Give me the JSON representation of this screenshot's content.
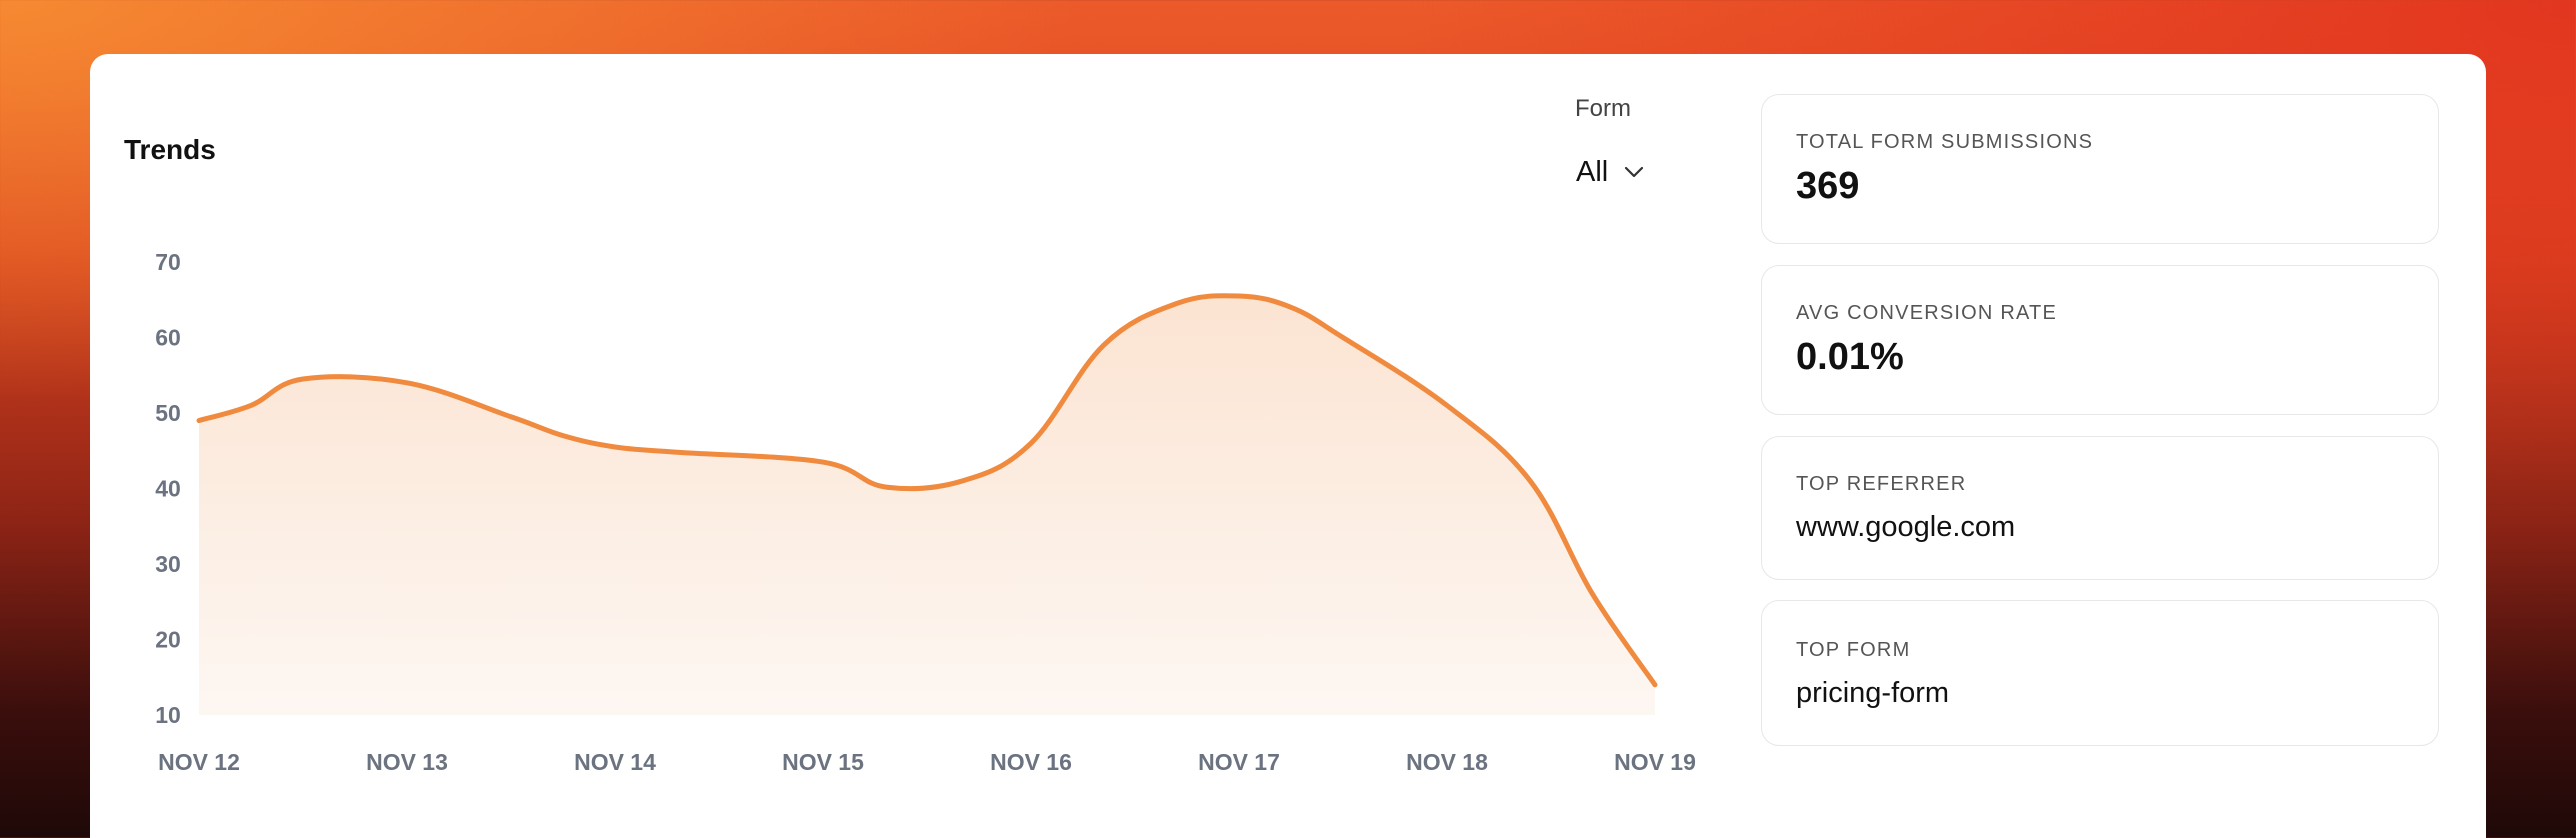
{
  "header": {
    "title": "Trends",
    "form_filter_label": "Form",
    "form_filter_value": "All",
    "chevron_icon": "chevron-down-icon"
  },
  "stats": [
    {
      "label": "TOTAL FORM SUBMISSIONS",
      "value": "369"
    },
    {
      "label": "AVG CONVERSION RATE",
      "value": "0.01%"
    },
    {
      "label": "TOP REFERRER",
      "value": "www.google.com"
    },
    {
      "label": "TOP FORM",
      "value": "pricing-form"
    }
  ],
  "colors": {
    "accent": "#f08a3e",
    "area_top": "#fbe2cf",
    "area_bottom": "#fdf6f1",
    "tick_text": "#6b7280"
  },
  "chart_data": {
    "type": "area",
    "title": "Trends",
    "xlabel": "",
    "ylabel": "",
    "ylim": [
      10,
      70
    ],
    "yticks": [
      "70",
      "60",
      "50",
      "40",
      "30",
      "20",
      "10"
    ],
    "categories": [
      "NOV 12",
      "NOV 13",
      "NOV 14",
      "NOV 15",
      "NOV 16",
      "NOV 17",
      "NOV 18",
      "NOV 19"
    ],
    "x": [
      0,
      0.25,
      0.5,
      1.0,
      1.5,
      1.75,
      2.0,
      2.3,
      3.0,
      3.3,
      3.67,
      4.0,
      4.35,
      4.7,
      5.0,
      5.25,
      5.5,
      6.0,
      6.4,
      6.7,
      7.0
    ],
    "values": [
      49,
      51,
      54.5,
      54,
      49.5,
      47,
      45.5,
      44.8,
      43.5,
      40.2,
      41,
      46,
      59,
      64.5,
      65.5,
      64,
      60,
      51,
      41,
      26,
      14
    ],
    "grid": false,
    "legend": "none"
  }
}
